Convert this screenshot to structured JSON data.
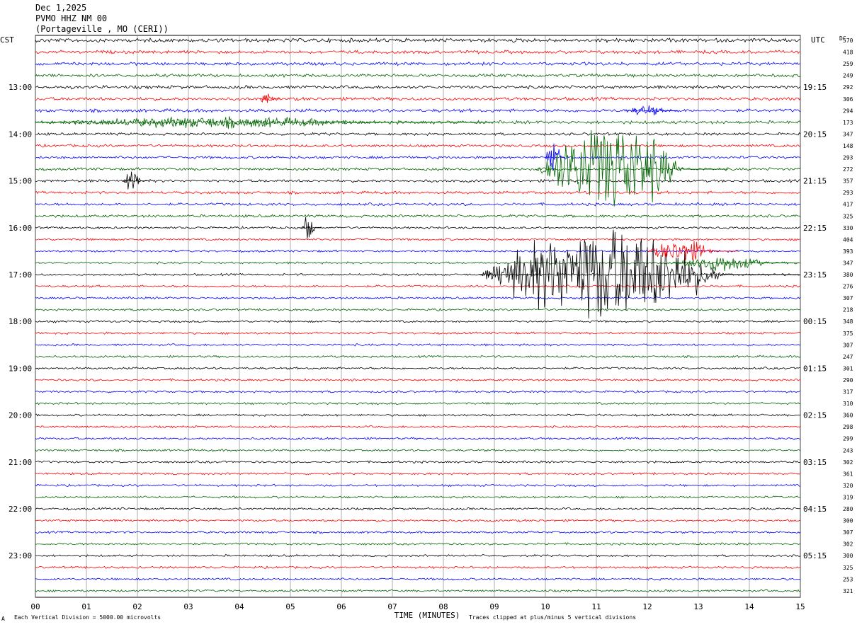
{
  "header": {
    "date": "Dec 1,2025",
    "station": "PVMO HHZ NM 00",
    "location": "(Portageville , MO (CERI))"
  },
  "left_axis_label": "CST",
  "right_axis_label": "UTC",
  "dc_label": "DC",
  "left_hour_labels": [
    "13:00",
    "14:00",
    "15:00",
    "16:00",
    "17:00",
    "18:00",
    "19:00",
    "20:00",
    "21:00",
    "22:00",
    "23:00"
  ],
  "right_hour_labels": [
    "19:15",
    "20:15",
    "21:15",
    "22:15",
    "23:15",
    "00:15",
    "01:15",
    "02:15",
    "03:15",
    "04:15",
    "05:15"
  ],
  "dc_values": [
    570,
    418,
    259,
    249,
    292,
    306,
    294,
    173,
    347,
    148,
    293,
    272,
    357,
    293,
    417,
    325,
    330,
    404,
    393,
    347,
    380,
    276,
    307,
    218,
    348,
    375,
    307,
    247,
    301,
    290,
    317,
    310,
    360,
    298,
    299,
    243,
    302,
    361,
    320,
    319,
    280,
    300,
    307,
    302,
    300,
    325,
    253,
    321
  ],
  "footer": {
    "vertical_division": "Each Vertical Division = 5000.00 microvolts",
    "clip_note": "Traces clipped at plus/minus 5 vertical divisions",
    "corner_mark": "A"
  },
  "chart_data": {
    "type": "line",
    "title": "PVMO HHZ NM 00",
    "xlabel": "TIME (MINUTES)",
    "ylabel": "",
    "x_ticks": [
      "00",
      "01",
      "02",
      "03",
      "04",
      "05",
      "06",
      "07",
      "08",
      "09",
      "10",
      "11",
      "12",
      "13",
      "14",
      "15"
    ],
    "xlim": [
      0,
      15
    ],
    "trace_count": 48,
    "trace_colors": [
      "#000000",
      "#ff0000",
      "#0000ff",
      "#006400"
    ],
    "grid": true,
    "events": [
      {
        "trace": 11,
        "start_min": 9.8,
        "end_min": 13.6,
        "peak_amp": 5,
        "color": "#006400"
      },
      {
        "trace": 10,
        "start_min": 10.0,
        "end_min": 10.4,
        "peak_amp": 2.2,
        "color": "#0000ff"
      },
      {
        "trace": 20,
        "start_min": 8.7,
        "end_min": 15.0,
        "peak_amp": 5,
        "color": "#000000"
      },
      {
        "trace": 18,
        "start_min": 12.0,
        "end_min": 13.8,
        "peak_amp": 1.2,
        "color": "#ff0000"
      },
      {
        "trace": 19,
        "start_min": 12.5,
        "end_min": 15.0,
        "peak_amp": 0.9,
        "color": "#006400"
      },
      {
        "trace": 16,
        "start_min": 5.2,
        "end_min": 5.6,
        "peak_amp": 1.2,
        "color": "#000000"
      },
      {
        "trace": 12,
        "start_min": 1.7,
        "end_min": 2.2,
        "peak_amp": 0.9,
        "color": "#000000"
      },
      {
        "trace": 7,
        "start_min": 0.0,
        "end_min": 9.0,
        "peak_amp": 0.6,
        "color": "#006400"
      },
      {
        "trace": 6,
        "start_min": 11.6,
        "end_min": 12.6,
        "peak_amp": 0.6,
        "color": "#0000ff"
      },
      {
        "trace": 5,
        "start_min": 4.4,
        "end_min": 4.8,
        "peak_amp": 0.8,
        "color": "#ff0000"
      }
    ]
  }
}
